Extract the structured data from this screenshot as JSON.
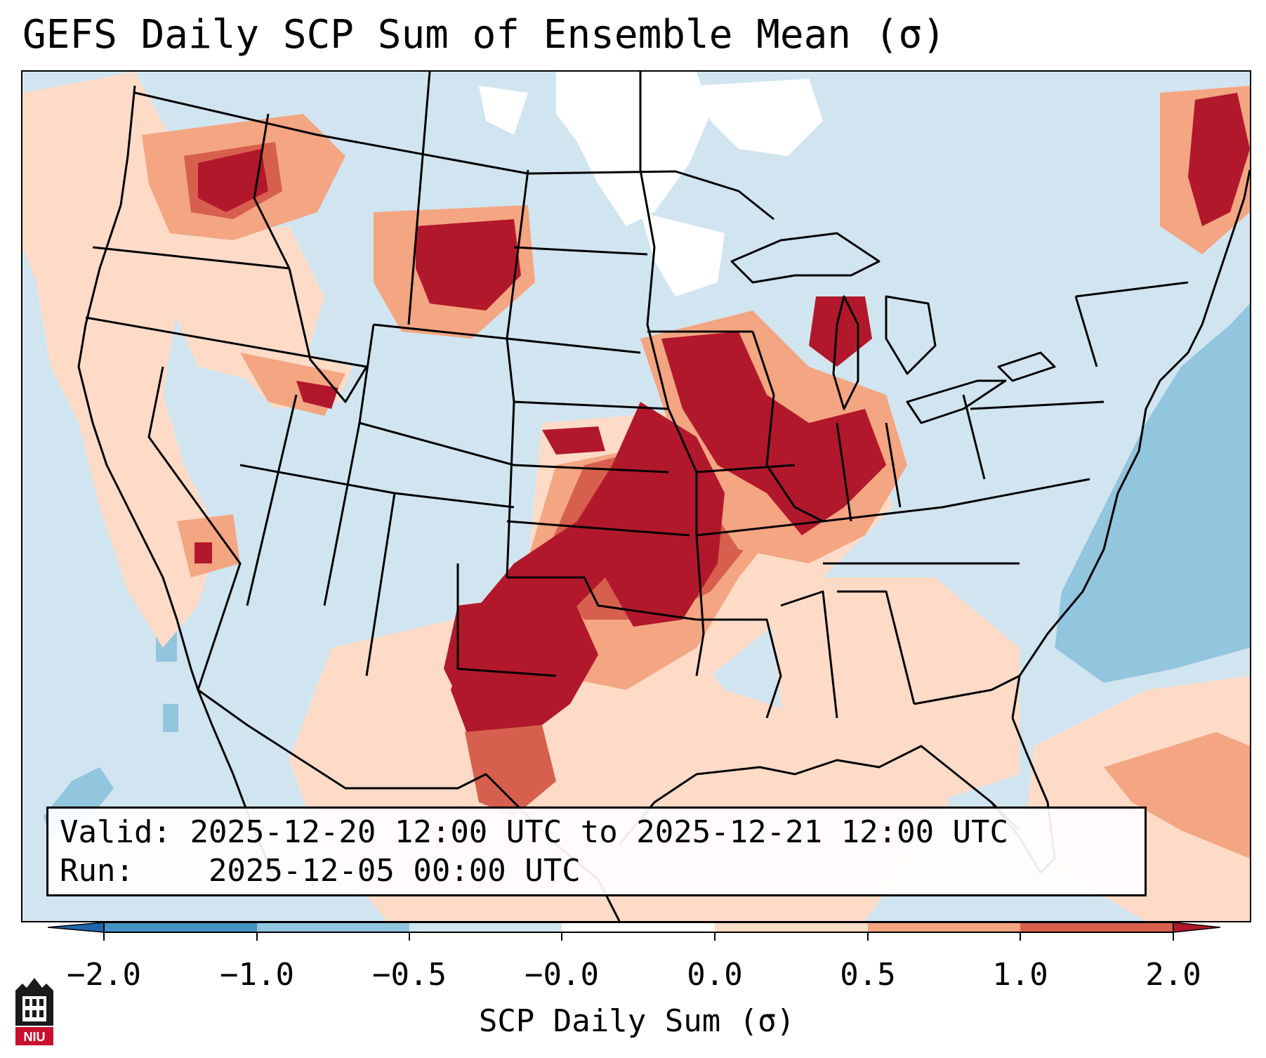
{
  "title": "GEFS Daily SCP Sum of Ensemble Mean (σ)",
  "info": {
    "valid_prefix": "Valid:",
    "valid_value": "2025-12-20 12:00 UTC to 2025-12-21 12:00 UTC",
    "run_prefix": "Run:",
    "run_value": "2025-12-05 00:00 UTC"
  },
  "colorbar": {
    "label": "SCP Daily Sum (σ)",
    "ticks": [
      "−2.0",
      "−1.0",
      "−0.5",
      "−0.0",
      "0.0",
      "0.5",
      "1.0",
      "2.0"
    ],
    "colors": [
      "#4393c3",
      "#92c5de",
      "#d1e5f0",
      "#ffffff",
      "#fddbc7",
      "#f4a582",
      "#d6604d",
      "#b2182b"
    ]
  },
  "logo_text": "NIU",
  "field_colors": {
    "land_background": "#d1e5f0",
    "ocean_negative": "#92c5de",
    "weak_positive": "#fddbc7",
    "moderate_positive": "#f4a582",
    "strong_positive": "#d6604d",
    "extreme_positive": "#b2182b",
    "near_zero": "#ffffff"
  }
}
